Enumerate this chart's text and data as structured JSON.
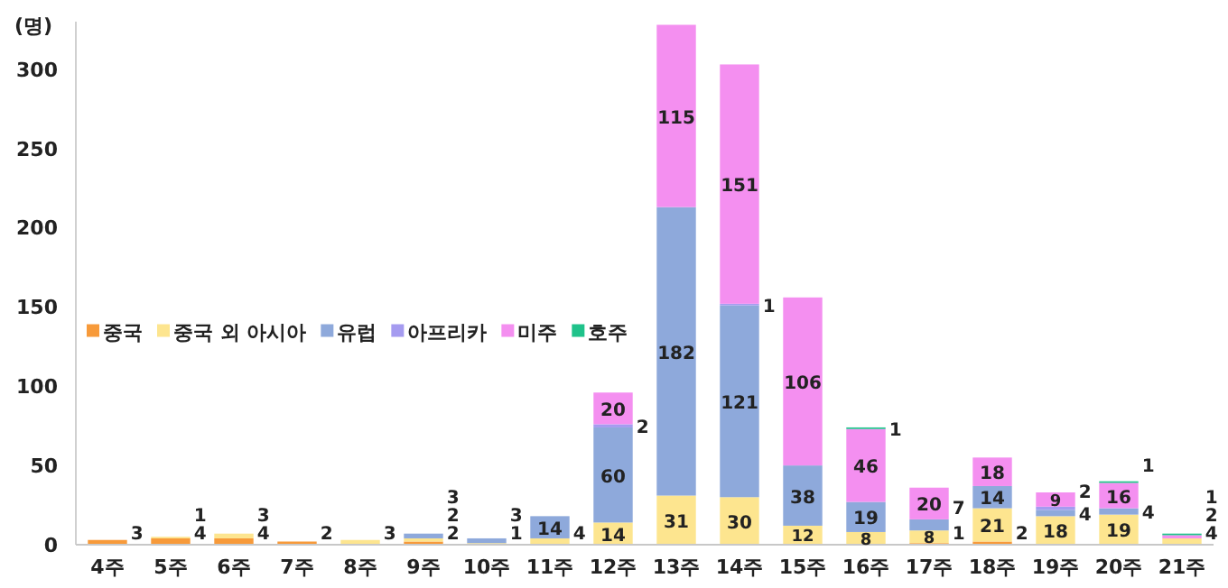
{
  "chart_data": {
    "type": "bar",
    "stacked": true,
    "ylabel": "(명)",
    "ylim": [
      0,
      330
    ],
    "yticks": [
      0,
      50,
      100,
      150,
      200,
      250,
      300
    ],
    "grid": false,
    "legend": "left",
    "data_labels": true,
    "categories": [
      "4주",
      "5주",
      "6주",
      "7주",
      "8주",
      "9주",
      "10주",
      "11주",
      "12주",
      "13주",
      "14주",
      "15주",
      "16주",
      "17주",
      "18주",
      "19주",
      "20주",
      "21주"
    ],
    "series": [
      {
        "name": "중국",
        "color": "#f79a3a",
        "values": [
          3,
          4,
          4,
          2,
          null,
          2,
          null,
          null,
          null,
          null,
          null,
          null,
          null,
          1,
          2,
          null,
          null,
          null
        ]
      },
      {
        "name": "중국 외 아시아",
        "color": "#fde58f",
        "values": [
          null,
          1,
          3,
          null,
          3,
          2,
          1,
          4,
          14,
          31,
          30,
          12,
          8,
          8,
          21,
          18,
          19,
          4
        ]
      },
      {
        "name": "유럽",
        "color": "#8ea9db",
        "values": [
          null,
          null,
          null,
          null,
          null,
          3,
          3,
          14,
          60,
          182,
          121,
          38,
          19,
          7,
          14,
          4,
          4,
          null
        ]
      },
      {
        "name": "아프리카",
        "color": "#a59bf0",
        "values": [
          null,
          null,
          null,
          null,
          null,
          null,
          null,
          null,
          2,
          null,
          1,
          null,
          null,
          null,
          null,
          2,
          null,
          null
        ]
      },
      {
        "name": "미주",
        "color": "#f48ff0",
        "values": [
          null,
          null,
          null,
          null,
          null,
          null,
          null,
          null,
          20,
          115,
          151,
          106,
          46,
          20,
          18,
          9,
          16,
          2
        ]
      },
      {
        "name": "호주",
        "color": "#1fc28a",
        "values": [
          null,
          null,
          null,
          null,
          null,
          null,
          null,
          null,
          null,
          null,
          null,
          null,
          1,
          null,
          null,
          null,
          1,
          1
        ]
      }
    ]
  }
}
